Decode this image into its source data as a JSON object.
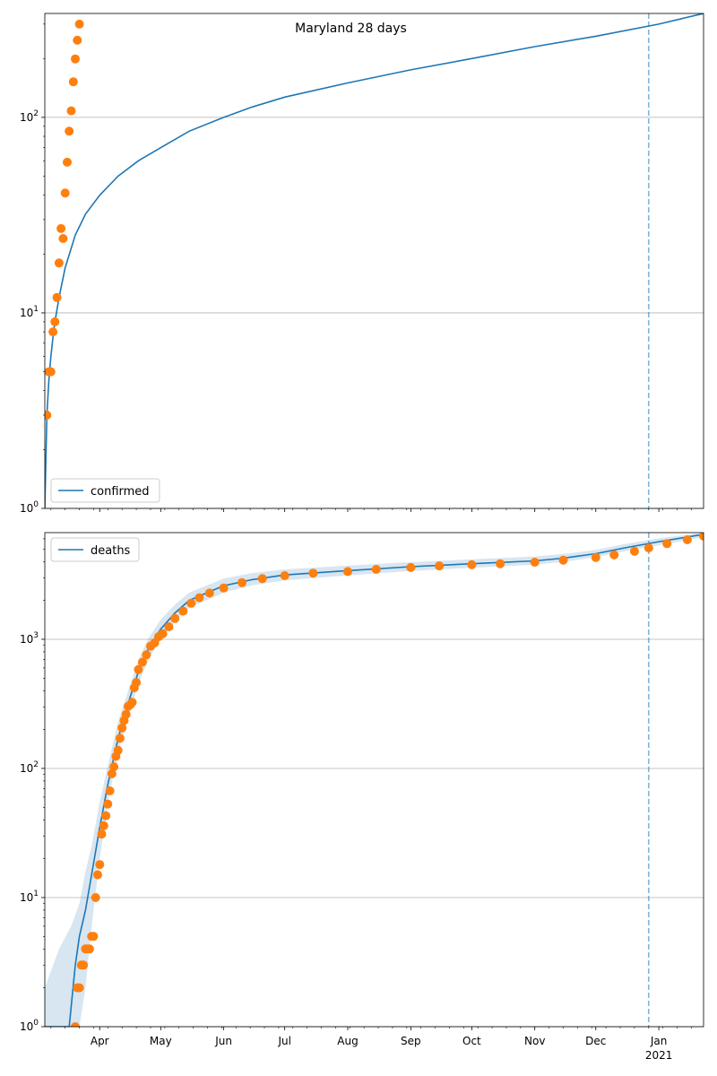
{
  "chart_data": [
    {
      "type": "scatter",
      "title": "Maryland 28 days",
      "yscale": "log",
      "ylim": [
        1,
        340
      ],
      "xlim": [
        "2020-03-05",
        "2021-01-23"
      ],
      "grid": "y",
      "legend": {
        "location": "lower-left",
        "entries": [
          "confirmed"
        ]
      },
      "y_ticks": [
        {
          "value": 1,
          "base": "10",
          "exp": "0"
        },
        {
          "value": 10,
          "base": "10",
          "exp": "1"
        },
        {
          "value": 100,
          "base": "10",
          "exp": "2"
        }
      ],
      "vline": "2020-12-27",
      "series": [
        {
          "name": "confirmed",
          "kind": "line",
          "color": "#1f77b4",
          "x": [
            "2020-03-05",
            "2020-03-06",
            "2020-03-07",
            "2020-03-08",
            "2020-03-09",
            "2020-03-10",
            "2020-03-12",
            "2020-03-15",
            "2020-03-20",
            "2020-03-25",
            "2020-04-01",
            "2020-04-10",
            "2020-04-20",
            "2020-05-01",
            "2020-05-15",
            "2020-06-01",
            "2020-06-15",
            "2020-07-01",
            "2020-08-01",
            "2020-09-01",
            "2020-10-01",
            "2020-11-01",
            "2020-12-01",
            "2021-01-01",
            "2021-01-23"
          ],
          "y": [
            1,
            3,
            4.5,
            6,
            7.5,
            9,
            12,
            17,
            25,
            32,
            40,
            50,
            60,
            70,
            85,
            100,
            113,
            127,
            150,
            175,
            200,
            230,
            260,
            300,
            340
          ]
        },
        {
          "name": "",
          "kind": "points",
          "color": "#ff7f0e",
          "x": [
            "2020-03-05",
            "2020-03-06",
            "2020-03-07",
            "2020-03-08",
            "2020-03-09",
            "2020-03-10",
            "2020-03-11",
            "2020-03-12",
            "2020-03-13",
            "2020-03-14",
            "2020-03-15",
            "2020-03-16",
            "2020-03-17",
            "2020-03-18",
            "2020-03-19",
            "2020-03-20",
            "2020-03-21",
            "2020-03-22"
          ],
          "y": [
            3,
            3,
            5,
            5,
            8,
            9,
            12,
            18,
            27,
            24,
            41,
            59,
            85,
            108,
            152,
            199,
            248,
            300
          ]
        }
      ]
    },
    {
      "type": "scatter",
      "yscale": "log",
      "ylim": [
        1,
        6700
      ],
      "xlim": [
        "2020-03-05",
        "2021-01-23"
      ],
      "grid": "y",
      "legend": {
        "location": "upper-left",
        "entries": [
          "deaths"
        ]
      },
      "y_ticks": [
        {
          "value": 1,
          "base": "10",
          "exp": "0"
        },
        {
          "value": 10,
          "base": "10",
          "exp": "1"
        },
        {
          "value": 100,
          "base": "10",
          "exp": "2"
        },
        {
          "value": 1000,
          "base": "10",
          "exp": "3"
        }
      ],
      "x_ticks": [
        {
          "date": "2020-04-01",
          "label": "Apr"
        },
        {
          "date": "2020-05-01",
          "label": "May"
        },
        {
          "date": "2020-06-01",
          "label": "Jun"
        },
        {
          "date": "2020-07-01",
          "label": "Jul"
        },
        {
          "date": "2020-08-01",
          "label": "Aug"
        },
        {
          "date": "2020-09-01",
          "label": "Sep"
        },
        {
          "date": "2020-10-01",
          "label": "Oct"
        },
        {
          "date": "2020-11-01",
          "label": "Nov"
        },
        {
          "date": "2020-12-01",
          "label": "Dec"
        },
        {
          "date": "2021-01-01",
          "label": "Jan",
          "sublabel": "2021"
        }
      ],
      "vline": "2020-12-27",
      "series": [
        {
          "name": "deaths",
          "kind": "line",
          "color": "#1f77b4",
          "x": [
            "2020-03-05",
            "2020-03-17",
            "2020-03-20",
            "2020-03-22",
            "2020-03-25",
            "2020-03-28",
            "2020-04-01",
            "2020-04-05",
            "2020-04-10",
            "2020-04-15",
            "2020-04-20",
            "2020-04-25",
            "2020-05-01",
            "2020-05-08",
            "2020-05-15",
            "2020-06-01",
            "2020-06-15",
            "2020-07-01",
            "2020-08-01",
            "2020-09-01",
            "2020-10-01",
            "2020-11-01",
            "2020-11-15",
            "2020-12-01",
            "2020-12-15",
            "2021-01-01",
            "2021-01-23"
          ],
          "y": [
            1,
            1,
            3,
            5,
            8,
            15,
            35,
            75,
            170,
            320,
            560,
            850,
            1200,
            1600,
            2000,
            2600,
            2900,
            3150,
            3400,
            3650,
            3850,
            4050,
            4250,
            4600,
            5100,
            5700,
            6500
          ]
        },
        {
          "name": "",
          "kind": "band",
          "color": "#1f77b4",
          "x": [
            "2020-03-05",
            "2020-03-12",
            "2020-03-18",
            "2020-03-22",
            "2020-03-25",
            "2020-03-28",
            "2020-04-01",
            "2020-04-05",
            "2020-04-10",
            "2020-04-15",
            "2020-04-20",
            "2020-04-25",
            "2020-05-01",
            "2020-05-08",
            "2020-05-15",
            "2020-06-01",
            "2020-06-15",
            "2020-07-01",
            "2020-08-01",
            "2020-09-01",
            "2020-10-01",
            "2020-11-01",
            "2020-11-15",
            "2020-12-01",
            "2020-12-15",
            "2021-01-01",
            "2021-01-23"
          ],
          "y_low": [
            1,
            1,
            1,
            1,
            2,
            6,
            20,
            55,
            130,
            250,
            450,
            700,
            1000,
            1380,
            1750,
            2300,
            2620,
            2860,
            3120,
            3380,
            3580,
            3780,
            3980,
            4320,
            4800,
            5350,
            6200
          ],
          "y_high": [
            2,
            4,
            6,
            9,
            16,
            25,
            55,
            105,
            230,
            400,
            690,
            1020,
            1420,
            1860,
            2300,
            2950,
            3260,
            3480,
            3720,
            3960,
            4160,
            4380,
            4580,
            4920,
            5450,
            6050,
            6700
          ]
        },
        {
          "name": "",
          "kind": "points",
          "color": "#ff7f0e",
          "x": [
            "2020-03-20",
            "2020-03-21",
            "2020-03-22",
            "2020-03-23",
            "2020-03-24",
            "2020-03-25",
            "2020-03-26",
            "2020-03-27",
            "2020-03-28",
            "2020-03-29",
            "2020-03-30",
            "2020-03-31",
            "2020-04-01",
            "2020-04-02",
            "2020-04-03",
            "2020-04-04",
            "2020-04-05",
            "2020-04-06",
            "2020-04-07",
            "2020-04-08",
            "2020-04-09",
            "2020-04-10",
            "2020-04-11",
            "2020-04-12",
            "2020-04-13",
            "2020-04-14",
            "2020-04-15",
            "2020-04-16",
            "2020-04-17",
            "2020-04-18",
            "2020-04-19",
            "2020-04-20",
            "2020-04-22",
            "2020-04-24",
            "2020-04-26",
            "2020-04-28",
            "2020-04-30",
            "2020-05-02",
            "2020-05-05",
            "2020-05-08",
            "2020-05-12",
            "2020-05-16",
            "2020-05-20",
            "2020-05-25",
            "2020-06-01",
            "2020-06-10",
            "2020-06-20",
            "2020-07-01",
            "2020-07-15",
            "2020-08-01",
            "2020-08-15",
            "2020-09-01",
            "2020-09-15",
            "2020-10-01",
            "2020-10-15",
            "2020-11-01",
            "2020-11-15",
            "2020-12-01",
            "2020-12-10",
            "2020-12-20",
            "2020-12-27",
            "2021-01-05",
            "2021-01-15",
            "2021-01-23"
          ],
          "y": [
            1,
            2,
            2,
            3,
            3,
            4,
            4,
            4,
            5,
            5,
            10,
            15,
            18,
            31,
            36,
            43,
            53,
            67,
            91,
            103,
            124,
            138,
            171,
            206,
            235,
            262,
            302,
            311,
            325,
            421,
            463,
            582,
            665,
            758,
            885,
            938,
            1047,
            1105,
            1250,
            1450,
            1650,
            1900,
            2100,
            2280,
            2500,
            2750,
            2950,
            3110,
            3250,
            3350,
            3480,
            3600,
            3700,
            3780,
            3850,
            3950,
            4100,
            4300,
            4500,
            4800,
            5100,
            5500,
            5900,
            6300
          ]
        }
      ]
    }
  ]
}
